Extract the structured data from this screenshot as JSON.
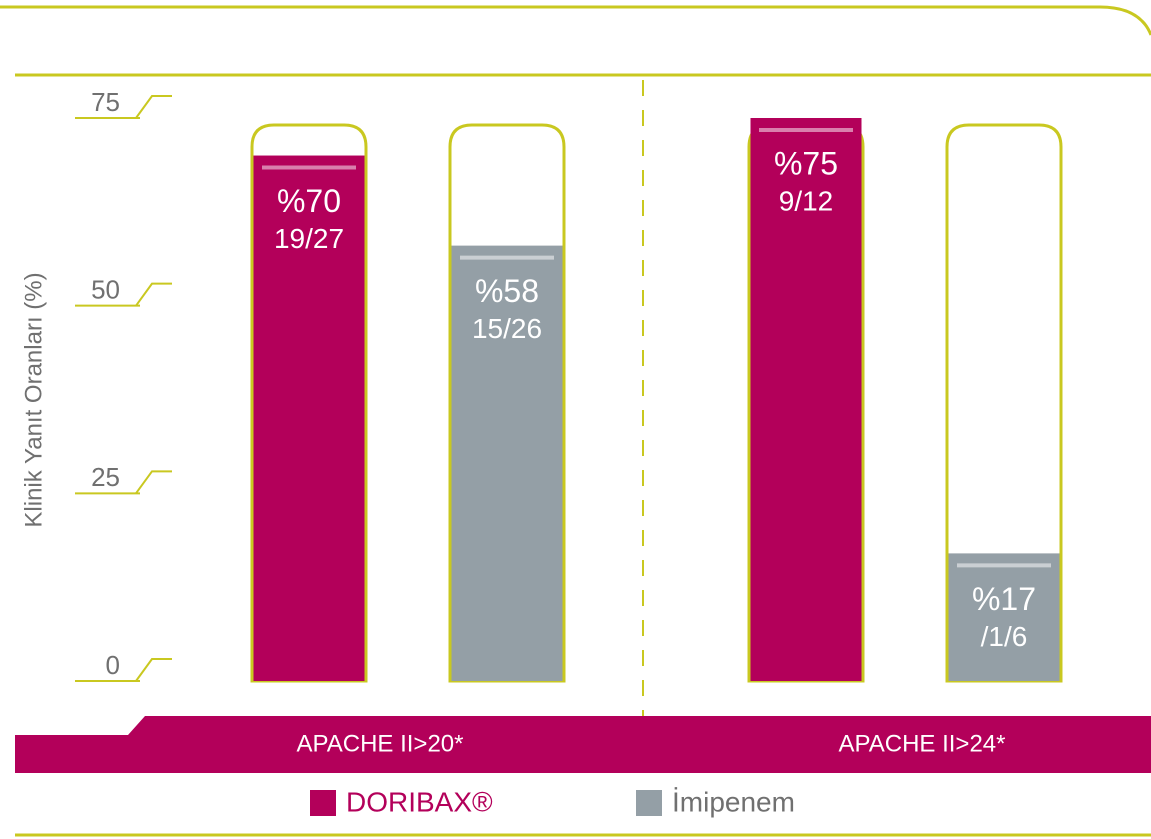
{
  "chart_data": {
    "type": "bar",
    "y_label": "Klinik Yanıt Oranları (%)",
    "categories": [
      "APACHE II>20*",
      "APACHE II>24*"
    ],
    "series": [
      {
        "name": "DORIBAX®",
        "color": "#b3005a",
        "values": [
          70,
          75
        ],
        "value_labels": [
          "%70",
          "%75"
        ],
        "fractions": [
          "19/27",
          "9/12"
        ]
      },
      {
        "name": "İmipenem",
        "color": "#949fa6",
        "values": [
          58,
          17
        ],
        "value_labels": [
          "%58",
          "%17"
        ],
        "fractions": [
          "15/26",
          "/1/6"
        ]
      }
    ],
    "ylim": [
      0,
      75
    ],
    "yticks": [
      0,
      25,
      50,
      75
    ]
  }
}
